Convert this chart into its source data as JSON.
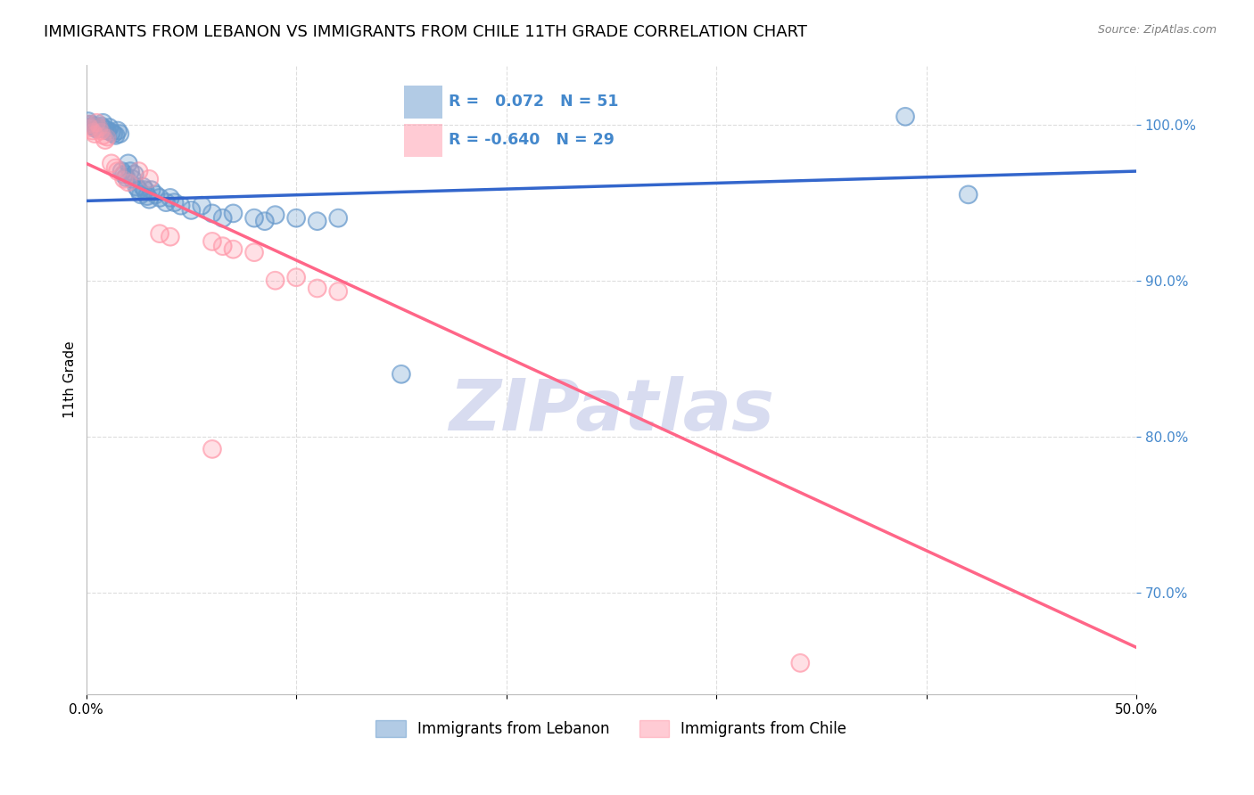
{
  "title": "IMMIGRANTS FROM LEBANON VS IMMIGRANTS FROM CHILE 11TH GRADE CORRELATION CHART",
  "source": "Source: ZipAtlas.com",
  "ylabel": "11th Grade",
  "xlim": [
    0.0,
    0.5
  ],
  "ylim": [
    0.635,
    1.038
  ],
  "lebanon_color": "#6699CC",
  "chile_color": "#FF99AA",
  "legend_lebanon_label": "Immigrants from Lebanon",
  "legend_chile_label": "Immigrants from Chile",
  "R_lebanon": 0.072,
  "N_lebanon": 51,
  "R_chile": -0.64,
  "N_chile": 29,
  "lebanon_scatter": [
    [
      0.001,
      1.002
    ],
    [
      0.002,
      1.0
    ],
    [
      0.003,
      0.999
    ],
    [
      0.004,
      0.998
    ],
    [
      0.005,
      0.997
    ],
    [
      0.006,
      0.998
    ],
    [
      0.007,
      0.999
    ],
    [
      0.008,
      1.001
    ],
    [
      0.009,
      0.997
    ],
    [
      0.01,
      0.996
    ],
    [
      0.011,
      0.998
    ],
    [
      0.012,
      0.995
    ],
    [
      0.013,
      0.994
    ],
    [
      0.014,
      0.993
    ],
    [
      0.015,
      0.996
    ],
    [
      0.016,
      0.994
    ],
    [
      0.017,
      0.97
    ],
    [
      0.018,
      0.968
    ],
    [
      0.019,
      0.966
    ],
    [
      0.02,
      0.975
    ],
    [
      0.021,
      0.97
    ],
    [
      0.022,
      0.965
    ],
    [
      0.023,
      0.968
    ],
    [
      0.024,
      0.96
    ],
    [
      0.025,
      0.958
    ],
    [
      0.026,
      0.955
    ],
    [
      0.027,
      0.96
    ],
    [
      0.028,
      0.958
    ],
    [
      0.029,
      0.954
    ],
    [
      0.03,
      0.952
    ],
    [
      0.031,
      0.958
    ],
    [
      0.033,
      0.955
    ],
    [
      0.035,
      0.953
    ],
    [
      0.038,
      0.95
    ],
    [
      0.04,
      0.953
    ],
    [
      0.042,
      0.95
    ],
    [
      0.045,
      0.948
    ],
    [
      0.05,
      0.945
    ],
    [
      0.055,
      0.948
    ],
    [
      0.06,
      0.943
    ],
    [
      0.065,
      0.94
    ],
    [
      0.07,
      0.943
    ],
    [
      0.08,
      0.94
    ],
    [
      0.085,
      0.938
    ],
    [
      0.09,
      0.942
    ],
    [
      0.1,
      0.94
    ],
    [
      0.11,
      0.938
    ],
    [
      0.12,
      0.94
    ],
    [
      0.15,
      0.84
    ],
    [
      0.39,
      1.005
    ],
    [
      0.42,
      0.955
    ]
  ],
  "chile_scatter": [
    [
      0.001,
      1.0
    ],
    [
      0.002,
      0.998
    ],
    [
      0.003,
      0.996
    ],
    [
      0.004,
      0.994
    ],
    [
      0.005,
      1.001
    ],
    [
      0.006,
      0.998
    ],
    [
      0.007,
      0.996
    ],
    [
      0.008,
      0.993
    ],
    [
      0.009,
      0.99
    ],
    [
      0.01,
      0.992
    ],
    [
      0.012,
      0.975
    ],
    [
      0.014,
      0.972
    ],
    [
      0.015,
      0.97
    ],
    [
      0.018,
      0.965
    ],
    [
      0.02,
      0.963
    ],
    [
      0.025,
      0.97
    ],
    [
      0.03,
      0.965
    ],
    [
      0.035,
      0.93
    ],
    [
      0.04,
      0.928
    ],
    [
      0.06,
      0.925
    ],
    [
      0.065,
      0.922
    ],
    [
      0.07,
      0.92
    ],
    [
      0.08,
      0.918
    ],
    [
      0.09,
      0.9
    ],
    [
      0.1,
      0.902
    ],
    [
      0.11,
      0.895
    ],
    [
      0.12,
      0.893
    ],
    [
      0.06,
      0.792
    ],
    [
      0.34,
      0.655
    ]
  ],
  "trendline_color_lebanon": "#3366CC",
  "trendline_color_chile": "#FF6688",
  "leb_trend_x": [
    0.0,
    0.5
  ],
  "leb_trend_y": [
    0.951,
    0.97
  ],
  "chi_trend_x": [
    0.0,
    0.5
  ],
  "chi_trend_y": [
    0.975,
    0.665
  ],
  "background_color": "#FFFFFF",
  "watermark_text": "ZIPatlas",
  "watermark_color": "#D8DCF0",
  "grid_color": "#DDDDDD",
  "title_fontsize": 13,
  "axis_label_fontsize": 11,
  "tick_fontsize": 11,
  "right_yaxis_color": "#4488CC",
  "y_ticks": [
    0.7,
    0.8,
    0.9,
    1.0
  ],
  "x_ticks": [
    0.0,
    0.1,
    0.2,
    0.3,
    0.4,
    0.5
  ]
}
